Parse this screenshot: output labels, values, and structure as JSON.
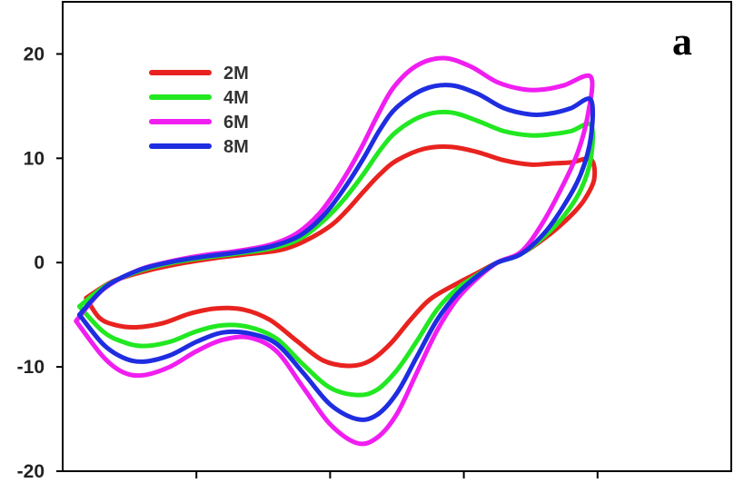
{
  "chart_data": {
    "type": "line",
    "panel_label": "a",
    "ylim": [
      -20,
      25
    ],
    "yticks": [
      20,
      10,
      0,
      -10,
      -20
    ],
    "ytick_labels": [
      "20",
      "10",
      "0",
      "-10",
      "-20"
    ],
    "xlim": [
      -0.8,
      1.2
    ],
    "xticks": [
      -0.4,
      0.0,
      0.4,
      0.8
    ],
    "xtick_labels": [],
    "grid": false,
    "legend_position": "top-left",
    "xlabel": "",
    "ylabel": "",
    "title": "",
    "series": [
      {
        "name": "2M",
        "color": "#e8231f",
        "points": [
          [
            -0.73,
            -3.4
          ],
          [
            -0.65,
            -1.8
          ],
          [
            -0.55,
            -0.8
          ],
          [
            -0.45,
            -0.1
          ],
          [
            -0.35,
            0.4
          ],
          [
            -0.25,
            0.8
          ],
          [
            -0.15,
            1.2
          ],
          [
            -0.08,
            2.0
          ],
          [
            0.0,
            3.5
          ],
          [
            0.05,
            5.0
          ],
          [
            0.1,
            6.8
          ],
          [
            0.15,
            8.5
          ],
          [
            0.2,
            9.8
          ],
          [
            0.28,
            10.9
          ],
          [
            0.36,
            11.1
          ],
          [
            0.44,
            10.6
          ],
          [
            0.52,
            9.8
          ],
          [
            0.6,
            9.4
          ],
          [
            0.66,
            9.5
          ],
          [
            0.72,
            9.6
          ],
          [
            0.78,
            9.9
          ],
          [
            0.79,
            8.0
          ],
          [
            0.76,
            6.0
          ],
          [
            0.72,
            4.5
          ],
          [
            0.66,
            2.8
          ],
          [
            0.58,
            1.0
          ],
          [
            0.5,
            0.0
          ],
          [
            0.44,
            -1.0
          ],
          [
            0.38,
            -2.0
          ],
          [
            0.3,
            -3.5
          ],
          [
            0.24,
            -5.5
          ],
          [
            0.18,
            -7.8
          ],
          [
            0.12,
            -9.4
          ],
          [
            0.06,
            -9.9
          ],
          [
            -0.02,
            -9.4
          ],
          [
            -0.1,
            -7.5
          ],
          [
            -0.18,
            -5.5
          ],
          [
            -0.26,
            -4.5
          ],
          [
            -0.34,
            -4.4
          ],
          [
            -0.42,
            -4.9
          ],
          [
            -0.5,
            -5.8
          ],
          [
            -0.58,
            -6.2
          ],
          [
            -0.64,
            -6.0
          ],
          [
            -0.69,
            -5.3
          ],
          [
            -0.73,
            -3.4
          ]
        ]
      },
      {
        "name": "4M",
        "color": "#22e822",
        "points": [
          [
            -0.75,
            -4.2
          ],
          [
            -0.67,
            -2.2
          ],
          [
            -0.57,
            -0.8
          ],
          [
            -0.47,
            0.0
          ],
          [
            -0.37,
            0.5
          ],
          [
            -0.27,
            0.9
          ],
          [
            -0.17,
            1.4
          ],
          [
            -0.09,
            2.3
          ],
          [
            -0.02,
            4.0
          ],
          [
            0.04,
            6.0
          ],
          [
            0.1,
            8.5
          ],
          [
            0.15,
            10.8
          ],
          [
            0.2,
            12.6
          ],
          [
            0.28,
            14.1
          ],
          [
            0.36,
            14.4
          ],
          [
            0.44,
            13.6
          ],
          [
            0.52,
            12.6
          ],
          [
            0.6,
            12.2
          ],
          [
            0.66,
            12.3
          ],
          [
            0.72,
            12.6
          ],
          [
            0.78,
            13.2
          ],
          [
            0.78,
            10.0
          ],
          [
            0.75,
            7.0
          ],
          [
            0.7,
            4.5
          ],
          [
            0.64,
            2.5
          ],
          [
            0.57,
            0.8
          ],
          [
            0.5,
            0.0
          ],
          [
            0.44,
            -1.2
          ],
          [
            0.38,
            -2.5
          ],
          [
            0.32,
            -4.5
          ],
          [
            0.26,
            -7.5
          ],
          [
            0.2,
            -10.3
          ],
          [
            0.14,
            -12.2
          ],
          [
            0.08,
            -12.7
          ],
          [
            0.0,
            -12.0
          ],
          [
            -0.08,
            -9.8
          ],
          [
            -0.16,
            -7.3
          ],
          [
            -0.24,
            -6.2
          ],
          [
            -0.32,
            -6.0
          ],
          [
            -0.4,
            -6.6
          ],
          [
            -0.48,
            -7.6
          ],
          [
            -0.56,
            -8.0
          ],
          [
            -0.62,
            -7.6
          ],
          [
            -0.68,
            -6.6
          ],
          [
            -0.75,
            -4.2
          ]
        ]
      },
      {
        "name": "6M",
        "color": "#f01ef0",
        "points": [
          [
            -0.76,
            -5.6
          ],
          [
            -0.68,
            -2.6
          ],
          [
            -0.58,
            -0.8
          ],
          [
            -0.48,
            0.1
          ],
          [
            -0.38,
            0.7
          ],
          [
            -0.28,
            1.1
          ],
          [
            -0.18,
            1.7
          ],
          [
            -0.1,
            2.8
          ],
          [
            -0.03,
            4.8
          ],
          [
            0.03,
            7.5
          ],
          [
            0.09,
            10.8
          ],
          [
            0.14,
            14.0
          ],
          [
            0.19,
            16.8
          ],
          [
            0.26,
            18.9
          ],
          [
            0.34,
            19.6
          ],
          [
            0.42,
            18.8
          ],
          [
            0.5,
            17.3
          ],
          [
            0.58,
            16.6
          ],
          [
            0.64,
            16.6
          ],
          [
            0.7,
            17.0
          ],
          [
            0.78,
            17.8
          ],
          [
            0.77,
            14.0
          ],
          [
            0.74,
            10.5
          ],
          [
            0.69,
            7.0
          ],
          [
            0.63,
            3.5
          ],
          [
            0.57,
            1.0
          ],
          [
            0.5,
            0.0
          ],
          [
            0.44,
            -1.5
          ],
          [
            0.38,
            -3.5
          ],
          [
            0.32,
            -6.5
          ],
          [
            0.26,
            -10.5
          ],
          [
            0.2,
            -14.5
          ],
          [
            0.14,
            -16.8
          ],
          [
            0.08,
            -17.3
          ],
          [
            0.0,
            -15.5
          ],
          [
            -0.08,
            -12.0
          ],
          [
            -0.16,
            -8.5
          ],
          [
            -0.24,
            -7.2
          ],
          [
            -0.32,
            -7.4
          ],
          [
            -0.4,
            -8.5
          ],
          [
            -0.48,
            -10.0
          ],
          [
            -0.56,
            -10.8
          ],
          [
            -0.62,
            -10.5
          ],
          [
            -0.68,
            -9.0
          ],
          [
            -0.76,
            -5.6
          ]
        ]
      },
      {
        "name": "8M",
        "color": "#1f2de0",
        "points": [
          [
            -0.75,
            -5.0
          ],
          [
            -0.67,
            -2.3
          ],
          [
            -0.57,
            -0.7
          ],
          [
            -0.47,
            0.1
          ],
          [
            -0.37,
            0.6
          ],
          [
            -0.27,
            1.0
          ],
          [
            -0.17,
            1.6
          ],
          [
            -0.09,
            2.6
          ],
          [
            -0.02,
            4.5
          ],
          [
            0.04,
            7.0
          ],
          [
            0.1,
            10.0
          ],
          [
            0.15,
            12.8
          ],
          [
            0.2,
            14.9
          ],
          [
            0.28,
            16.6
          ],
          [
            0.36,
            17.0
          ],
          [
            0.44,
            16.2
          ],
          [
            0.52,
            14.8
          ],
          [
            0.6,
            14.2
          ],
          [
            0.66,
            14.3
          ],
          [
            0.72,
            14.8
          ],
          [
            0.78,
            15.6
          ],
          [
            0.78,
            12.0
          ],
          [
            0.75,
            8.5
          ],
          [
            0.7,
            5.5
          ],
          [
            0.64,
            2.8
          ],
          [
            0.57,
            0.8
          ],
          [
            0.5,
            0.0
          ],
          [
            0.44,
            -1.3
          ],
          [
            0.38,
            -3.0
          ],
          [
            0.32,
            -5.5
          ],
          [
            0.26,
            -9.0
          ],
          [
            0.2,
            -12.5
          ],
          [
            0.14,
            -14.6
          ],
          [
            0.08,
            -15.0
          ],
          [
            0.0,
            -13.6
          ],
          [
            -0.08,
            -10.6
          ],
          [
            -0.16,
            -7.8
          ],
          [
            -0.24,
            -6.8
          ],
          [
            -0.32,
            -6.7
          ],
          [
            -0.4,
            -7.6
          ],
          [
            -0.48,
            -8.9
          ],
          [
            -0.56,
            -9.5
          ],
          [
            -0.62,
            -9.1
          ],
          [
            -0.68,
            -7.8
          ],
          [
            -0.75,
            -5.0
          ]
        ]
      }
    ]
  }
}
